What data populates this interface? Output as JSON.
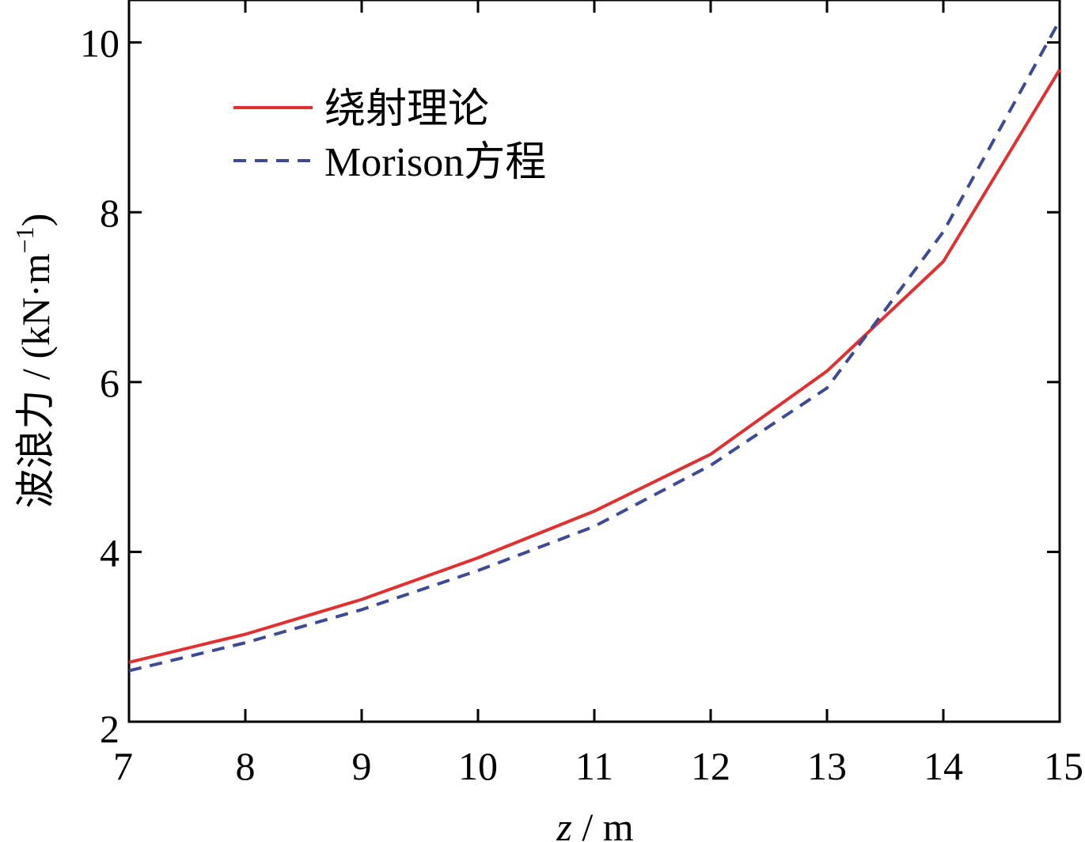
{
  "chart_data": {
    "type": "line",
    "xlabel_var": "z",
    "xlabel_unit": "m",
    "ylabel_prefix": "波浪力 / (kN·m",
    "ylabel_exp": "−1",
    "ylabel_suffix": ")",
    "xlim": [
      7,
      15
    ],
    "ylim": [
      2,
      10.5
    ],
    "x_ticks": [
      "7",
      "8",
      "9",
      "10",
      "11",
      "12",
      "13",
      "14",
      "15"
    ],
    "y_ticks": [
      "2",
      "4",
      "6",
      "8",
      "10"
    ],
    "x": [
      7,
      8,
      9,
      10,
      11,
      12,
      13,
      14,
      15
    ],
    "series": [
      {
        "name": "绕射理论",
        "color": "#e03030",
        "dash": "solid",
        "values": [
          2.7,
          3.03,
          3.44,
          3.93,
          4.48,
          5.15,
          6.13,
          7.42,
          9.68
        ]
      },
      {
        "name": "Morison方程",
        "color": "#3d4a96",
        "dash": "dashed",
        "values": [
          2.6,
          2.93,
          3.32,
          3.78,
          4.3,
          5.02,
          5.93,
          7.77,
          10.26
        ]
      }
    ],
    "legend_position": "upper-left",
    "grid": false
  }
}
